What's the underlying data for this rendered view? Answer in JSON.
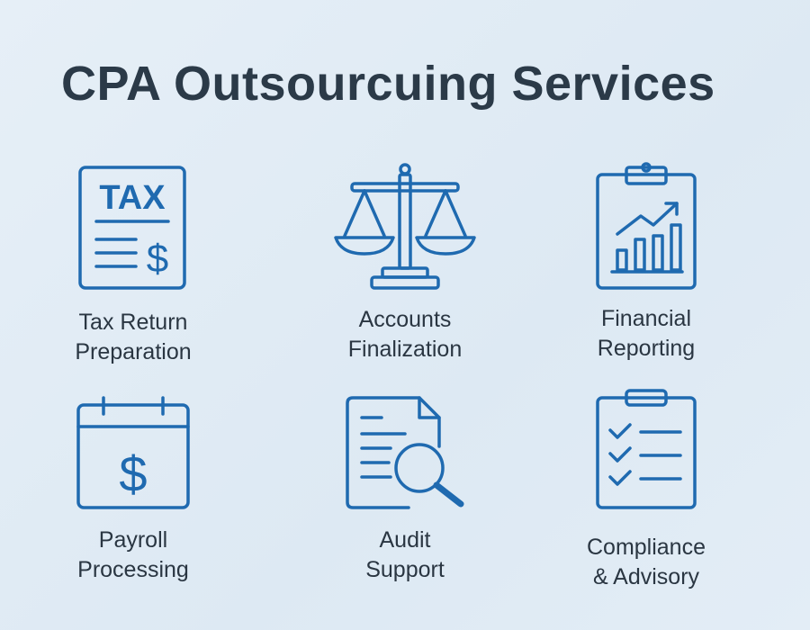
{
  "title": "CPA Outsourcuing Services",
  "accent_color": "#1f6ab0",
  "services": [
    {
      "icon": "tax-document-icon",
      "icon_text": "TAX",
      "line1": "Tax Return",
      "line2": "Preparation"
    },
    {
      "icon": "scales-icon",
      "line1": "Accounts",
      "line2": "Finalization"
    },
    {
      "icon": "clipboard-chart-icon",
      "line1": "Financial",
      "line2": "Reporting"
    },
    {
      "icon": "calendar-dollar-icon",
      "line1": "Payroll",
      "line2": "Processing"
    },
    {
      "icon": "document-magnifier-icon",
      "line1": "Audit",
      "line2": "Support"
    },
    {
      "icon": "checklist-icon",
      "line1": "Compliance",
      "line2": "& Advisory"
    }
  ]
}
